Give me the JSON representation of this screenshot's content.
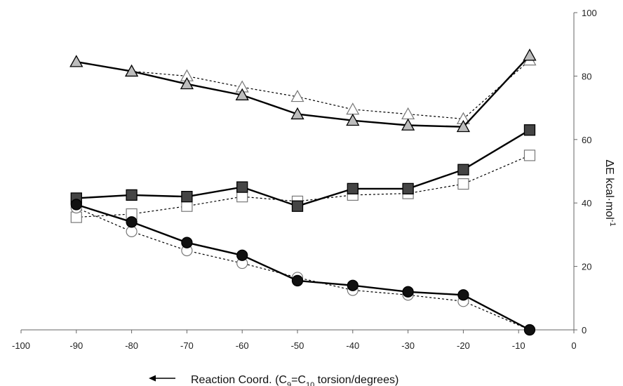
{
  "chart_data": {
    "type": "line",
    "xlabel": {
      "prefix": "Reaction Coord. (C",
      "sub1": "9",
      "mid": "=C",
      "sub2": "10",
      "suffix": " torsion/degrees)"
    },
    "ylabel": {
      "main": "ΔE kcal·mol",
      "sup": "-1"
    },
    "xlim": [
      -100,
      0
    ],
    "ylim": [
      0,
      100
    ],
    "x_ticks": [
      -100,
      -90,
      -80,
      -70,
      -60,
      -50,
      -40,
      -30,
      -20,
      -10,
      0
    ],
    "y_ticks": [
      0,
      20,
      40,
      60,
      80,
      100
    ],
    "y_axis_side": "right",
    "grid": false,
    "legend": "none",
    "direction_arrow": "left",
    "series": [
      {
        "marker": "triangle",
        "filled": true,
        "line_style": "solid",
        "x": [
          -90,
          -80,
          -70,
          -60,
          -50,
          -40,
          -30,
          -20,
          -8
        ],
        "values": [
          84.5,
          81.5,
          77.5,
          74,
          68,
          66,
          64.5,
          64,
          86.5
        ]
      },
      {
        "marker": "triangle",
        "filled": false,
        "line_style": "dotted",
        "x": [
          -90,
          -80,
          -70,
          -60,
          -50,
          -40,
          -30,
          -20,
          -8
        ],
        "values": [
          84.5,
          81.5,
          80,
          76.5,
          73.5,
          69.5,
          68,
          66.5,
          85
        ]
      },
      {
        "marker": "square",
        "filled": true,
        "line_style": "solid",
        "x": [
          -90,
          -80,
          -70,
          -60,
          -50,
          -40,
          -30,
          -20,
          -8
        ],
        "values": [
          41.5,
          42.5,
          42,
          45,
          39,
          44.5,
          44.5,
          50.5,
          63
        ]
      },
      {
        "marker": "square",
        "filled": false,
        "line_style": "dotted",
        "x": [
          -90,
          -80,
          -70,
          -60,
          -50,
          -40,
          -30,
          -20,
          -8
        ],
        "values": [
          35.5,
          36.5,
          39,
          42,
          40.5,
          42.5,
          43,
          46,
          55
        ]
      },
      {
        "marker": "circle",
        "filled": true,
        "line_style": "solid",
        "x": [
          -90,
          -80,
          -70,
          -60,
          -50,
          -40,
          -30,
          -20,
          -8
        ],
        "values": [
          39.5,
          34,
          27.5,
          23.5,
          15.5,
          14,
          12,
          11,
          0
        ]
      },
      {
        "marker": "circle",
        "filled": false,
        "line_style": "dotted",
        "x": [
          -90,
          -80,
          -70,
          -60,
          -50,
          -40,
          -30,
          -20,
          -8
        ],
        "values": [
          38.5,
          31,
          25,
          21,
          16.5,
          12.5,
          11,
          9,
          0
        ]
      }
    ]
  }
}
